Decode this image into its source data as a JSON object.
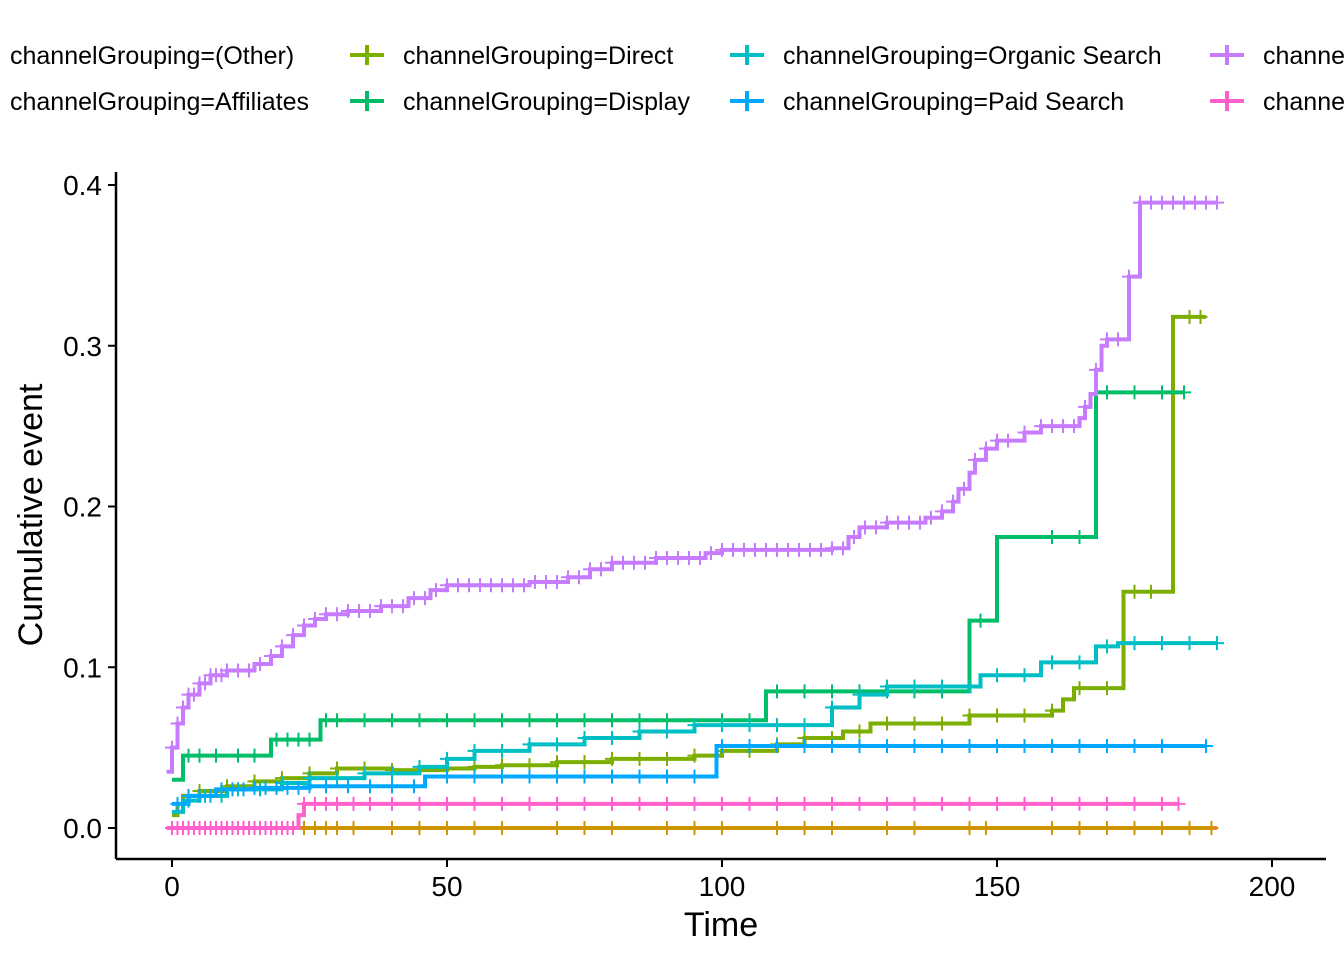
{
  "chart_data": {
    "type": "line",
    "title": "",
    "xlabel": "Time",
    "ylabel": "Cumulative event",
    "xlim": [
      -10,
      210
    ],
    "ylim": [
      -0.02,
      0.41
    ],
    "x_ticks": [
      "0",
      "50",
      "100",
      "150",
      "200"
    ],
    "x_tick_values": [
      0,
      50,
      100,
      150,
      200
    ],
    "y_ticks": [
      "0.0",
      "0.1",
      "0.2",
      "0.3",
      "0.4"
    ],
    "y_tick_values": [
      0,
      0.1,
      0.2,
      0.3,
      0.4
    ],
    "grid": false,
    "legend_position": "top",
    "series": [
      {
        "name": "channelGrouping=(Other)",
        "color": "#F8766D",
        "points": [
          [
            0,
            0
          ],
          [
            190,
            0
          ]
        ],
        "censor_x": []
      },
      {
        "name": "channelGrouping=Affiliates",
        "color": "#CD9600",
        "points": [
          [
            0,
            0
          ],
          [
            189,
            0
          ]
        ],
        "censor_x": [
          2,
          5,
          8,
          11,
          14,
          17,
          20,
          22,
          24,
          26,
          28,
          30,
          33,
          40,
          45,
          50,
          55,
          60,
          70,
          75,
          80,
          90,
          95,
          100,
          110,
          115,
          120,
          130,
          135,
          145,
          148,
          160,
          165,
          170,
          175,
          180,
          185,
          189
        ]
      },
      {
        "name": "channelGrouping=Direct",
        "color": "#7CAE00",
        "points": [
          [
            0,
            0.008
          ],
          [
            1,
            0.015
          ],
          [
            2,
            0.02
          ],
          [
            5,
            0.023
          ],
          [
            10,
            0.026
          ],
          [
            15,
            0.029
          ],
          [
            20,
            0.031
          ],
          [
            25,
            0.034
          ],
          [
            30,
            0.037
          ],
          [
            40,
            0.036
          ],
          [
            50,
            0.037
          ],
          [
            55,
            0.038
          ],
          [
            60,
            0.039
          ],
          [
            70,
            0.041
          ],
          [
            80,
            0.043
          ],
          [
            95,
            0.045
          ],
          [
            100,
            0.048
          ],
          [
            110,
            0.052
          ],
          [
            115,
            0.056
          ],
          [
            122,
            0.06
          ],
          [
            127,
            0.065
          ],
          [
            140,
            0.065
          ],
          [
            145,
            0.07
          ],
          [
            160,
            0.073
          ],
          [
            162,
            0.08
          ],
          [
            164,
            0.087
          ],
          [
            172,
            0.087
          ],
          [
            173,
            0.147
          ],
          [
            181,
            0.147
          ],
          [
            182,
            0.318
          ],
          [
            188,
            0.318
          ]
        ],
        "censor_x": [
          5,
          10,
          15,
          20,
          25,
          30,
          35,
          40,
          50,
          55,
          60,
          65,
          70,
          75,
          80,
          85,
          90,
          95,
          100,
          105,
          110,
          115,
          120,
          125,
          130,
          135,
          140,
          145,
          150,
          155,
          160,
          165,
          170,
          175,
          178,
          185,
          187
        ]
      },
      {
        "name": "channelGrouping=Display",
        "color": "#00BE67",
        "points": [
          [
            0,
            0.03
          ],
          [
            2,
            0.045
          ],
          [
            17,
            0.045
          ],
          [
            18,
            0.055
          ],
          [
            26,
            0.055
          ],
          [
            27,
            0.067
          ],
          [
            107,
            0.067
          ],
          [
            108,
            0.085
          ],
          [
            144,
            0.085
          ],
          [
            145,
            0.129
          ],
          [
            149,
            0.129
          ],
          [
            150,
            0.181
          ],
          [
            167,
            0.181
          ],
          [
            168,
            0.271
          ],
          [
            184,
            0.271
          ]
        ],
        "censor_x": [
          3,
          5,
          8,
          12,
          15,
          19,
          21,
          23,
          25,
          28,
          30,
          35,
          40,
          45,
          50,
          55,
          60,
          65,
          70,
          75,
          80,
          85,
          90,
          100,
          105,
          110,
          115,
          120,
          125,
          130,
          135,
          140,
          147,
          160,
          165,
          170,
          175,
          180,
          184
        ]
      },
      {
        "name": "channelGrouping=Organic Search",
        "color": "#00BFC4",
        "points": [
          [
            0,
            0.01
          ],
          [
            2,
            0.017
          ],
          [
            5,
            0.02
          ],
          [
            10,
            0.024
          ],
          [
            20,
            0.028
          ],
          [
            25,
            0.031
          ],
          [
            35,
            0.034
          ],
          [
            45,
            0.038
          ],
          [
            50,
            0.043
          ],
          [
            55,
            0.048
          ],
          [
            65,
            0.052
          ],
          [
            75,
            0.056
          ],
          [
            85,
            0.06
          ],
          [
            95,
            0.064
          ],
          [
            115,
            0.064
          ],
          [
            120,
            0.075
          ],
          [
            125,
            0.083
          ],
          [
            130,
            0.088
          ],
          [
            145,
            0.088
          ],
          [
            147,
            0.095
          ],
          [
            155,
            0.095
          ],
          [
            158,
            0.103
          ],
          [
            165,
            0.103
          ],
          [
            168,
            0.113
          ],
          [
            172,
            0.115
          ],
          [
            190,
            0.115
          ]
        ],
        "censor_x": [
          3,
          6,
          9,
          12,
          16,
          20,
          25,
          30,
          35,
          40,
          45,
          50,
          55,
          60,
          65,
          70,
          75,
          80,
          85,
          90,
          95,
          100,
          105,
          110,
          115,
          120,
          125,
          130,
          135,
          140,
          145,
          150,
          155,
          160,
          165,
          170,
          175,
          180,
          185,
          190
        ]
      },
      {
        "name": "channelGrouping=Paid Search",
        "color": "#00A9FF",
        "points": [
          [
            0,
            0.015
          ],
          [
            3,
            0.02
          ],
          [
            8,
            0.024
          ],
          [
            15,
            0.025
          ],
          [
            25,
            0.026
          ],
          [
            40,
            0.026
          ],
          [
            46,
            0.032
          ],
          [
            98,
            0.032
          ],
          [
            99,
            0.051
          ],
          [
            188,
            0.051
          ]
        ],
        "censor_x": [
          1,
          3,
          5,
          7,
          9,
          11,
          13,
          15,
          17,
          19,
          21,
          23,
          25,
          28,
          32,
          36,
          40,
          44,
          50,
          55,
          60,
          65,
          70,
          75,
          80,
          85,
          90,
          95,
          100,
          105,
          110,
          115,
          120,
          125,
          130,
          135,
          140,
          145,
          150,
          155,
          160,
          165,
          170,
          175,
          180,
          188
        ]
      },
      {
        "name": "channelGrouping=Referral",
        "color": "#C77CFF",
        "points": [
          [
            -1,
            0.035
          ],
          [
            0,
            0.05
          ],
          [
            1,
            0.065
          ],
          [
            2,
            0.075
          ],
          [
            3,
            0.083
          ],
          [
            5,
            0.09
          ],
          [
            7,
            0.095
          ],
          [
            10,
            0.098
          ],
          [
            15,
            0.102
          ],
          [
            18,
            0.107
          ],
          [
            20,
            0.113
          ],
          [
            22,
            0.12
          ],
          [
            24,
            0.126
          ],
          [
            26,
            0.13
          ],
          [
            28,
            0.133
          ],
          [
            32,
            0.135
          ],
          [
            38,
            0.138
          ],
          [
            43,
            0.143
          ],
          [
            47,
            0.148
          ],
          [
            50,
            0.151
          ],
          [
            60,
            0.151
          ],
          [
            65,
            0.153
          ],
          [
            72,
            0.156
          ],
          [
            76,
            0.161
          ],
          [
            80,
            0.165
          ],
          [
            88,
            0.168
          ],
          [
            93,
            0.168
          ],
          [
            97,
            0.171
          ],
          [
            100,
            0.173
          ],
          [
            110,
            0.173
          ],
          [
            120,
            0.174
          ],
          [
            123,
            0.181
          ],
          [
            125,
            0.187
          ],
          [
            130,
            0.19
          ],
          [
            137,
            0.193
          ],
          [
            140,
            0.197
          ],
          [
            142,
            0.203
          ],
          [
            143,
            0.211
          ],
          [
            145,
            0.221
          ],
          [
            146,
            0.229
          ],
          [
            148,
            0.236
          ],
          [
            150,
            0.241
          ],
          [
            155,
            0.246
          ],
          [
            158,
            0.25
          ],
          [
            165,
            0.255
          ],
          [
            166,
            0.262
          ],
          [
            167,
            0.27
          ],
          [
            168,
            0.285
          ],
          [
            169,
            0.3
          ],
          [
            170,
            0.304
          ],
          [
            173,
            0.304
          ],
          [
            174,
            0.343
          ],
          [
            175,
            0.343
          ],
          [
            176,
            0.389
          ],
          [
            190,
            0.389
          ]
        ],
        "censor_x": [
          0,
          1,
          2,
          3,
          4,
          5,
          6,
          7,
          8,
          9,
          10,
          12,
          14,
          16,
          18,
          20,
          22,
          24,
          26,
          28,
          30,
          32,
          34,
          36,
          38,
          40,
          42,
          44,
          46,
          48,
          50,
          52,
          54,
          56,
          58,
          60,
          62,
          64,
          66,
          68,
          70,
          72,
          74,
          76,
          78,
          80,
          82,
          84,
          86,
          88,
          90,
          92,
          94,
          96,
          98,
          100,
          102,
          104,
          106,
          108,
          110,
          112,
          114,
          116,
          118,
          120,
          122,
          124,
          126,
          128,
          130,
          132,
          134,
          136,
          138,
          140,
          142,
          144,
          146,
          148,
          150,
          152,
          155,
          158,
          160,
          162,
          164,
          166,
          168,
          170,
          172,
          174,
          176,
          178,
          180,
          182,
          184,
          186,
          188,
          190
        ]
      },
      {
        "name": "channelGrouping=Social",
        "color": "#FF61CC",
        "points": [
          [
            -1,
            0
          ],
          [
            22,
            0
          ],
          [
            23,
            0.008
          ],
          [
            24,
            0.015
          ],
          [
            183,
            0.015
          ]
        ],
        "censor_x": [
          0,
          1,
          2,
          3,
          4,
          5,
          6,
          7,
          8,
          9,
          10,
          11,
          12,
          13,
          14,
          15,
          16,
          17,
          18,
          19,
          20,
          21,
          22,
          24,
          26,
          28,
          30,
          33,
          36,
          40,
          45,
          50,
          55,
          60,
          65,
          70,
          75,
          80,
          85,
          90,
          95,
          100,
          105,
          110,
          115,
          120,
          125,
          130,
          135,
          140,
          145,
          150,
          155,
          160,
          165,
          170,
          175,
          180,
          183
        ]
      }
    ]
  }
}
